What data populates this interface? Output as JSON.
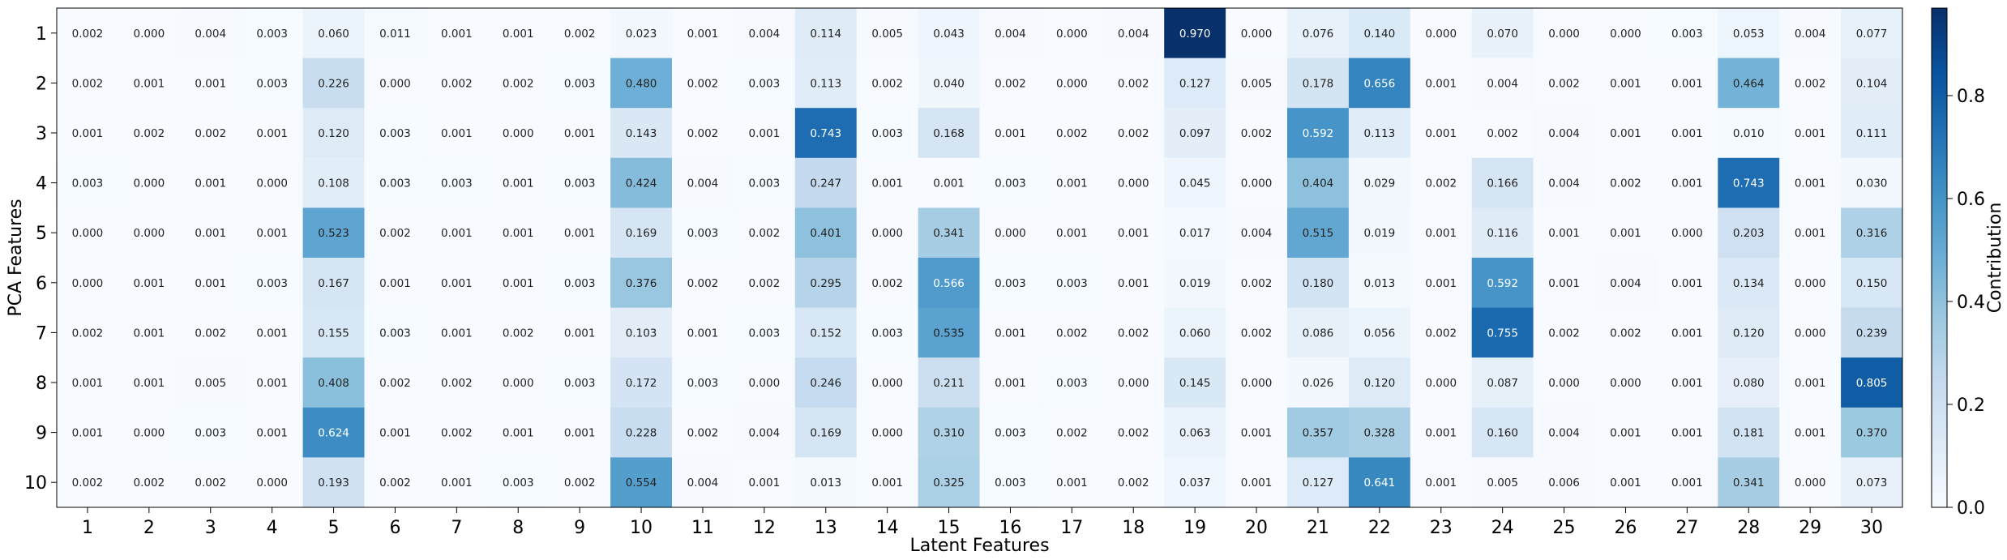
{
  "chart_data": {
    "type": "heatmap",
    "title": "",
    "xlabel": "Latent Features",
    "ylabel": "PCA Features",
    "x_categories": [
      "1",
      "2",
      "3",
      "4",
      "5",
      "6",
      "7",
      "8",
      "9",
      "10",
      "11",
      "12",
      "13",
      "14",
      "15",
      "16",
      "17",
      "18",
      "19",
      "20",
      "21",
      "22",
      "23",
      "24",
      "25",
      "26",
      "27",
      "28",
      "29",
      "30"
    ],
    "y_categories": [
      "1",
      "2",
      "3",
      "4",
      "5",
      "6",
      "7",
      "8",
      "9",
      "10"
    ],
    "values": [
      [
        "0.002",
        "0.000",
        "0.004",
        "0.003",
        "0.060",
        "0.011",
        "0.001",
        "0.001",
        "0.002",
        "0.023",
        "0.001",
        "0.004",
        "0.114",
        "0.005",
        "0.043",
        "0.004",
        "0.000",
        "0.004",
        "0.970",
        "0.000",
        "0.076",
        "0.140",
        "0.000",
        "0.070",
        "0.000",
        "0.000",
        "0.003",
        "0.053",
        "0.004",
        "0.077"
      ],
      [
        "0.002",
        "0.001",
        "0.001",
        "0.003",
        "0.226",
        "0.000",
        "0.002",
        "0.002",
        "0.003",
        "0.480",
        "0.002",
        "0.003",
        "0.113",
        "0.002",
        "0.040",
        "0.002",
        "0.000",
        "0.002",
        "0.127",
        "0.005",
        "0.178",
        "0.656",
        "0.001",
        "0.004",
        "0.002",
        "0.001",
        "0.001",
        "0.464",
        "0.002",
        "0.104"
      ],
      [
        "0.001",
        "0.002",
        "0.002",
        "0.001",
        "0.120",
        "0.003",
        "0.001",
        "0.000",
        "0.001",
        "0.143",
        "0.002",
        "0.001",
        "0.743",
        "0.003",
        "0.168",
        "0.001",
        "0.002",
        "0.002",
        "0.097",
        "0.002",
        "0.592",
        "0.113",
        "0.001",
        "0.002",
        "0.004",
        "0.001",
        "0.001",
        "0.010",
        "0.001",
        "0.111"
      ],
      [
        "0.003",
        "0.000",
        "0.001",
        "0.000",
        "0.108",
        "0.003",
        "0.003",
        "0.001",
        "0.003",
        "0.424",
        "0.004",
        "0.003",
        "0.247",
        "0.001",
        "0.001",
        "0.003",
        "0.001",
        "0.000",
        "0.045",
        "0.000",
        "0.404",
        "0.029",
        "0.002",
        "0.166",
        "0.004",
        "0.002",
        "0.001",
        "0.743",
        "0.001",
        "0.030"
      ],
      [
        "0.000",
        "0.000",
        "0.001",
        "0.001",
        "0.523",
        "0.002",
        "0.001",
        "0.001",
        "0.001",
        "0.169",
        "0.003",
        "0.002",
        "0.401",
        "0.000",
        "0.341",
        "0.000",
        "0.001",
        "0.001",
        "0.017",
        "0.004",
        "0.515",
        "0.019",
        "0.001",
        "0.116",
        "0.001",
        "0.001",
        "0.000",
        "0.203",
        "0.001",
        "0.316"
      ],
      [
        "0.000",
        "0.001",
        "0.001",
        "0.003",
        "0.167",
        "0.001",
        "0.001",
        "0.001",
        "0.003",
        "0.376",
        "0.002",
        "0.002",
        "0.295",
        "0.002",
        "0.566",
        "0.003",
        "0.003",
        "0.001",
        "0.019",
        "0.002",
        "0.180",
        "0.013",
        "0.001",
        "0.592",
        "0.001",
        "0.004",
        "0.001",
        "0.134",
        "0.000",
        "0.150"
      ],
      [
        "0.002",
        "0.001",
        "0.002",
        "0.001",
        "0.155",
        "0.003",
        "0.001",
        "0.002",
        "0.001",
        "0.103",
        "0.001",
        "0.003",
        "0.152",
        "0.003",
        "0.535",
        "0.001",
        "0.002",
        "0.002",
        "0.060",
        "0.002",
        "0.086",
        "0.056",
        "0.002",
        "0.755",
        "0.002",
        "0.002",
        "0.001",
        "0.120",
        "0.000",
        "0.239"
      ],
      [
        "0.001",
        "0.001",
        "0.005",
        "0.001",
        "0.408",
        "0.002",
        "0.002",
        "0.000",
        "0.003",
        "0.172",
        "0.003",
        "0.000",
        "0.246",
        "0.000",
        "0.211",
        "0.001",
        "0.003",
        "0.000",
        "0.145",
        "0.000",
        "0.026",
        "0.120",
        "0.000",
        "0.087",
        "0.000",
        "0.000",
        "0.001",
        "0.080",
        "0.001",
        "0.805"
      ],
      [
        "0.001",
        "0.000",
        "0.003",
        "0.001",
        "0.624",
        "0.001",
        "0.002",
        "0.001",
        "0.001",
        "0.228",
        "0.002",
        "0.004",
        "0.169",
        "0.000",
        "0.310",
        "0.003",
        "0.002",
        "0.002",
        "0.063",
        "0.001",
        "0.357",
        "0.328",
        "0.001",
        "0.160",
        "0.004",
        "0.001",
        "0.001",
        "0.181",
        "0.001",
        "0.370"
      ],
      [
        "0.002",
        "0.002",
        "0.002",
        "0.000",
        "0.193",
        "0.002",
        "0.001",
        "0.003",
        "0.002",
        "0.554",
        "0.004",
        "0.001",
        "0.013",
        "0.001",
        "0.325",
        "0.003",
        "0.001",
        "0.002",
        "0.037",
        "0.001",
        "0.127",
        "0.641",
        "0.001",
        "0.005",
        "0.006",
        "0.001",
        "0.001",
        "0.341",
        "0.000",
        "0.073"
      ]
    ],
    "colormap": "Blues",
    "vmin": 0,
    "vmax": 0.97,
    "colorbar": {
      "label": "Contribution",
      "ticks": [
        "0.0",
        "0.2",
        "0.4",
        "0.6",
        "0.8"
      ]
    }
  }
}
